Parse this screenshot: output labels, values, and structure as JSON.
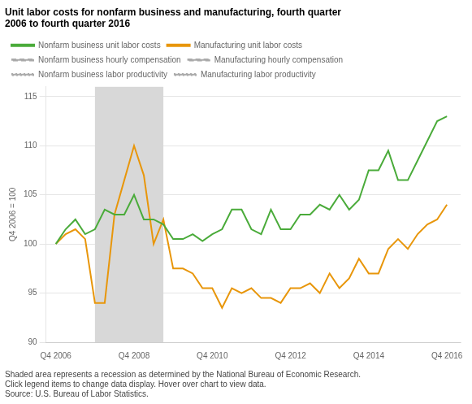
{
  "chart_data": {
    "type": "line",
    "title": "Unit labor costs for nonfarm business and manufacturing, fourth quarter\n2006 to fourth quarter 2016",
    "y_label": "Q4 2006 = 100",
    "footnote": "Shaded area represents a recession as determined by the National Bureau of Economic Research.\nClick legend items to change data display. Hover over chart to view data.\nSource: U.S. Bureau of Labor Statistics.",
    "x": [
      2006.75,
      2007.0,
      2007.25,
      2007.5,
      2007.75,
      2008.0,
      2008.25,
      2008.5,
      2008.75,
      2009.0,
      2009.25,
      2009.5,
      2009.75,
      2010.0,
      2010.25,
      2010.5,
      2010.75,
      2011.0,
      2011.25,
      2011.5,
      2011.75,
      2012.0,
      2012.25,
      2012.5,
      2012.75,
      2013.0,
      2013.25,
      2013.5,
      2013.75,
      2014.0,
      2014.25,
      2014.5,
      2014.75,
      2015.0,
      2015.25,
      2015.5,
      2015.75,
      2016.0,
      2016.25,
      2016.5,
      2016.75
    ],
    "series": [
      {
        "name": "Nonfarm business unit labor costs",
        "color": "#4aab3a",
        "line_style": "solid",
        "values": [
          100.0,
          101.5,
          102.5,
          101.0,
          101.5,
          103.5,
          103.0,
          103.0,
          105.0,
          102.5,
          102.5,
          102.0,
          100.5,
          100.5,
          101.0,
          100.3,
          101.0,
          101.5,
          103.5,
          103.5,
          101.5,
          101.0,
          103.5,
          101.5,
          101.5,
          103.0,
          103.0,
          104.0,
          103.5,
          105.0,
          103.5,
          104.5,
          107.5,
          107.5,
          109.5,
          106.5,
          106.5,
          108.5,
          110.5,
          112.5,
          113.0
        ]
      },
      {
        "name": "Manufacturing unit labor costs",
        "color": "#e8960a",
        "line_style": "solid",
        "values": [
          100.0,
          101.0,
          101.5,
          100.5,
          94.0,
          94.0,
          103.0,
          106.5,
          110.0,
          107.0,
          100.0,
          102.5,
          97.5,
          97.5,
          97.0,
          95.5,
          95.5,
          93.5,
          95.5,
          95.0,
          95.5,
          94.5,
          94.5,
          94.0,
          95.5,
          95.5,
          96.0,
          95.0,
          97.0,
          95.5,
          96.5,
          98.5,
          97.0,
          97.0,
          99.5,
          100.5,
          99.5,
          101.0,
          102.0,
          102.5,
          104.0
        ]
      },
      {
        "name": "Nonfarm business hourly compensation",
        "color": "#aaaaaa",
        "line_style": "dashed",
        "values": [
          null,
          null,
          null,
          null,
          null,
          null,
          null,
          null,
          null,
          null,
          null,
          null,
          null,
          null,
          null,
          null,
          null,
          null,
          null,
          null,
          null,
          null,
          null,
          null,
          null,
          null,
          null,
          null,
          null,
          null,
          null,
          null,
          null,
          null,
          null,
          null,
          null,
          null,
          null,
          null,
          null
        ]
      },
      {
        "name": "Manufacturing hourly compensation",
        "color": "#aaaaaa",
        "line_style": "dashed",
        "values": [
          null,
          null,
          null,
          null,
          null,
          null,
          null,
          null,
          null,
          null,
          null,
          null,
          null,
          null,
          null,
          null,
          null,
          null,
          null,
          null,
          null,
          null,
          null,
          null,
          null,
          null,
          null,
          null,
          null,
          null,
          null,
          null,
          null,
          null,
          null,
          null,
          null,
          null,
          null,
          null,
          null
        ]
      },
      {
        "name": "Nonfarm business labor productivity",
        "color": "#aaaaaa",
        "line_style": "dotted",
        "values": [
          null,
          null,
          null,
          null,
          null,
          null,
          null,
          null,
          null,
          null,
          null,
          null,
          null,
          null,
          null,
          null,
          null,
          null,
          null,
          null,
          null,
          null,
          null,
          null,
          null,
          null,
          null,
          null,
          null,
          null,
          null,
          null,
          null,
          null,
          null,
          null,
          null,
          null,
          null,
          null,
          null
        ]
      },
      {
        "name": "Manufacturing labor productivity",
        "color": "#aaaaaa",
        "line_style": "dotted",
        "values": [
          null,
          null,
          null,
          null,
          null,
          null,
          null,
          null,
          null,
          null,
          null,
          null,
          null,
          null,
          null,
          null,
          null,
          null,
          null,
          null,
          null,
          null,
          null,
          null,
          null,
          null,
          null,
          null,
          null,
          null,
          null,
          null,
          null,
          null,
          null,
          null,
          null,
          null,
          null,
          null,
          null
        ]
      }
    ],
    "recession": {
      "x": [
        2007.75,
        2009.5
      ],
      "color": "#d8d8d8"
    },
    "xlim": [
      2006.5,
      2017.1
    ],
    "xticks": [
      {
        "value": 2006.75,
        "label": "Q4 2006"
      },
      {
        "value": 2008.75,
        "label": "Q4 2008"
      },
      {
        "value": 2010.75,
        "label": "Q4 2010"
      },
      {
        "value": 2012.75,
        "label": "Q4 2012"
      },
      {
        "value": 2014.75,
        "label": "Q4 2014"
      },
      {
        "value": 2016.75,
        "label": "Q4 2016"
      }
    ],
    "ylim": [
      90,
      116
    ],
    "yticks": [
      90,
      95,
      100,
      105,
      110,
      115
    ],
    "grid": true,
    "legend": "top"
  }
}
